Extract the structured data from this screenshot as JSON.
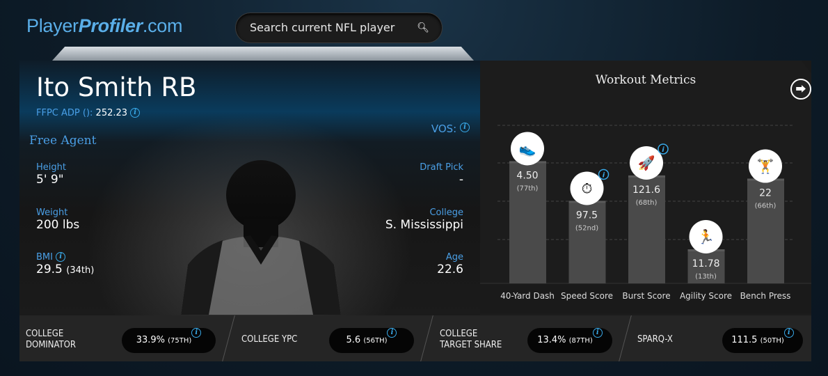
{
  "header": {
    "logo_part1": "Player",
    "logo_part2": "Profiler",
    "logo_part3": ".com",
    "search_placeholder": "Search current NFL player",
    "search_icon": "search-icon"
  },
  "player": {
    "name": "Ito Smith RB",
    "adp_label": "FFPC ADP ():",
    "adp_value": "252.23",
    "vos_label": "VOS:",
    "team": "Free Agent",
    "height_label": "Height",
    "height": "5' 9\"",
    "weight_label": "Weight",
    "weight": "200 lbs",
    "bmi_label": "BMI",
    "bmi": "29.5",
    "bmi_rank": "(34th)",
    "draft_label": "Draft Pick",
    "draft": "-",
    "college_label": "College",
    "college": "S. Mississippi",
    "age_label": "Age",
    "age": "22.6"
  },
  "workout": {
    "title": "Workout Metrics",
    "share_icon": "share-icon",
    "chart_data": {
      "type": "bar",
      "categories": [
        "40-Yard Dash",
        "Speed Score",
        "Burst Score",
        "Agility Score",
        "Bench Press"
      ],
      "values": [
        "4.50",
        "97.5",
        "121.6",
        "11.78",
        "22"
      ],
      "percentile_labels": [
        "(77th)",
        "(52nd)",
        "(68th)",
        "(13th)",
        "(66th)"
      ],
      "percentiles": [
        77,
        52,
        68,
        13,
        66
      ],
      "icons": [
        "shoe-icon",
        "stopwatch-icon",
        "rocket-icon",
        "runner-icon",
        "barbell-icon"
      ],
      "info_icon": [
        false,
        true,
        true,
        false,
        false
      ],
      "grid": true
    }
  },
  "stats": [
    {
      "label1": "College",
      "label2": "Dominator",
      "value": "33.9%",
      "rank": "(75TH)"
    },
    {
      "label1": "College YPC",
      "label2": "",
      "value": "5.6",
      "rank": "(56TH)"
    },
    {
      "label1": "College",
      "label2": "Target Share",
      "value": "13.4%",
      "rank": "(87TH)"
    },
    {
      "label1": "SPARQ-x",
      "label2": "",
      "value": "111.5",
      "rank": "(50TH)"
    }
  ],
  "colors": {
    "accent": "#4a9fe6",
    "info": "#39a9e8"
  }
}
